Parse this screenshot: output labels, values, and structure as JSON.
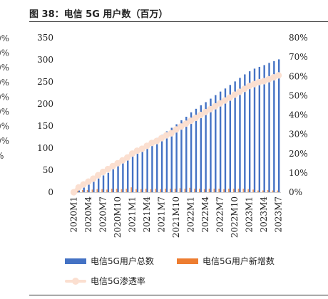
{
  "figure_title": "图 38：电信 5G 用户数（百万）",
  "colors": {
    "total_bar": "#4472c4",
    "new_bar": "#ed7d31",
    "rate_line": "#fbdfd0",
    "axis": "#d0d0d0",
    "text": "#222222"
  },
  "legend": {
    "total_label": "电信5G用户总数",
    "new_label": "电信5G用户新增数",
    "rate_label": "电信5G渗透率"
  },
  "left_ghost_labels": [
    "0%",
    "0%",
    "0%",
    "0%",
    "0%",
    "0%",
    "0%",
    "0%",
    "%"
  ],
  "chart_data": {
    "type": "bar",
    "categories": [
      "2020M1",
      "2020M2",
      "2020M3",
      "2020M4",
      "2020M5",
      "2020M6",
      "2020M7",
      "2020M8",
      "2020M9",
      "2020M10",
      "2020M11",
      "2020M12",
      "2021M1",
      "2021M2",
      "2021M3",
      "2021M4",
      "2021M5",
      "2021M6",
      "2021M7",
      "2021M8",
      "2021M9",
      "2021M10",
      "2021M11",
      "2021M12",
      "2022M1",
      "2022M2",
      "2022M3",
      "2022M4",
      "2022M5",
      "2022M6",
      "2022M7",
      "2022M8",
      "2022M9",
      "2022M10",
      "2022M11",
      "2022M12",
      "2023M1",
      "2023M2",
      "2023M3",
      "2023M4",
      "2023M5",
      "2023M6",
      "2023M7"
    ],
    "tick_labels": [
      "2020M1",
      "2020M4",
      "2020M7",
      "2020M10",
      "2021M1",
      "2021M4",
      "2021M7",
      "2021M10",
      "2022M1",
      "2022M4",
      "2022M7",
      "2022M10",
      "2023M1",
      "2023M4",
      "2023M7"
    ],
    "series": [
      {
        "name": "电信5G用户总数",
        "type": "bar",
        "axis": "left",
        "values": [
          0,
          8,
          13,
          18,
          24,
          31,
          38,
          44,
          52,
          60,
          67,
          75,
          86,
          93,
          100,
          108,
          115,
          123,
          130,
          138,
          146,
          154,
          163,
          171,
          181,
          189,
          197,
          204,
          212,
          220,
          228,
          235,
          243,
          251,
          259,
          267,
          274,
          280,
          284,
          288,
          293,
          297,
          301
        ]
      },
      {
        "name": "电信5G用户新增数",
        "type": "bar",
        "axis": "left",
        "values": [
          0,
          5,
          5,
          5,
          6,
          7,
          7,
          6,
          8,
          8,
          7,
          8,
          11,
          7,
          7,
          8,
          7,
          8,
          7,
          8,
          8,
          8,
          9,
          8,
          10,
          8,
          8,
          7,
          8,
          8,
          8,
          7,
          8,
          8,
          8,
          8,
          7,
          6,
          4,
          4,
          5,
          4,
          4
        ]
      },
      {
        "name": "电信5G渗透率",
        "type": "line",
        "axis": "right",
        "values": [
          0,
          0.025,
          0.04,
          0.055,
          0.07,
          0.088,
          0.105,
          0.12,
          0.135,
          0.15,
          0.165,
          0.18,
          0.2,
          0.215,
          0.225,
          0.24,
          0.255,
          0.265,
          0.28,
          0.295,
          0.305,
          0.325,
          0.34,
          0.355,
          0.37,
          0.385,
          0.4,
          0.415,
          0.43,
          0.445,
          0.46,
          0.475,
          0.49,
          0.505,
          0.52,
          0.535,
          0.55,
          0.56,
          0.57,
          0.575,
          0.585,
          0.595,
          0.605
        ]
      }
    ],
    "y_left": {
      "min": 0,
      "max": 350,
      "ticks": [
        0,
        50,
        100,
        150,
        200,
        250,
        300,
        350
      ],
      "tick_labels": [
        "0",
        "50",
        "100",
        "150",
        "200",
        "250",
        "300",
        "350"
      ]
    },
    "y_right": {
      "min": 0,
      "max": 0.8,
      "ticks": [
        0,
        0.1,
        0.2,
        0.3,
        0.4,
        0.5,
        0.6,
        0.7,
        0.8
      ],
      "tick_labels": [
        "0%",
        "10%",
        "20%",
        "30%",
        "40%",
        "50%",
        "60%",
        "70%",
        "80%"
      ]
    },
    "xlabel": "",
    "ylabel": "",
    "grid": false,
    "legend_position": "bottom"
  }
}
